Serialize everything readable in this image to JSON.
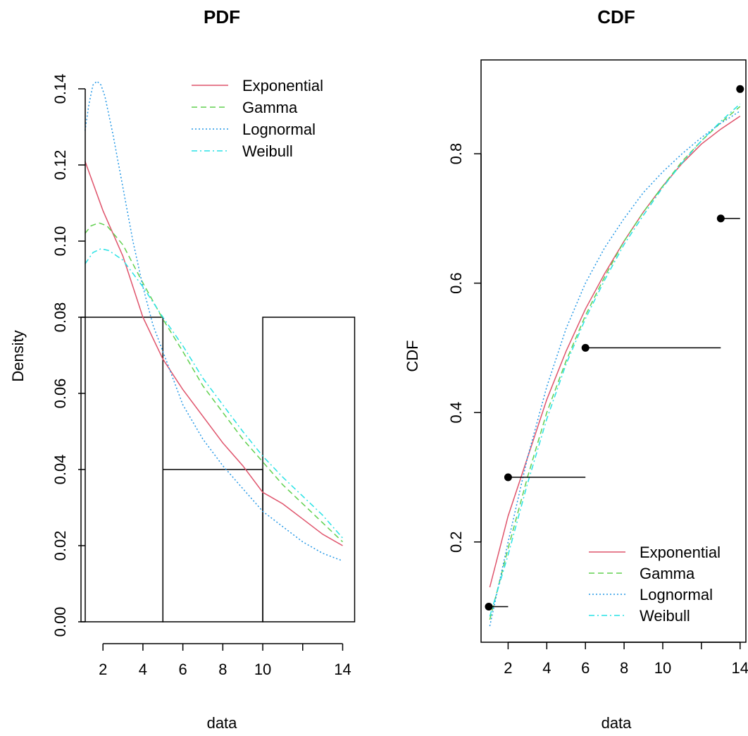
{
  "chart_data": [
    {
      "type": "line",
      "title": "PDF",
      "xlabel": "data",
      "ylabel": "Density",
      "xlim": [
        0.9,
        14.3
      ],
      "ylim": [
        0,
        0.14
      ],
      "x_ticks": [
        2,
        4,
        6,
        8,
        10,
        12,
        14
      ],
      "x_tick_labels": [
        "2",
        "4",
        "6",
        "8",
        "10",
        "",
        "14"
      ],
      "y_ticks": [
        0,
        0.02,
        0.04,
        0.06,
        0.08,
        0.1,
        0.12,
        0.14
      ],
      "y_tick_labels": [
        "0.00",
        "0.02",
        "0.04",
        "0.06",
        "0.08",
        "0.10",
        "0.12",
        "0.14"
      ],
      "legend_position": "top-right",
      "histogram": [
        {
          "x0": 0.9,
          "x1": 5,
          "density": 0.08
        },
        {
          "x0": 5,
          "x1": 10,
          "density": 0.04
        },
        {
          "x0": 10,
          "x1": 14.6,
          "density": 0.08
        }
      ],
      "series": [
        {
          "name": "Exponential",
          "color": "#DF536B",
          "dash": "solid",
          "x": [
            1.1,
            2,
            3,
            4,
            5,
            6,
            7,
            8,
            9,
            10,
            11,
            12,
            13,
            14
          ],
          "y": [
            0.121,
            0.108,
            0.096,
            0.08,
            0.069,
            0.061,
            0.054,
            0.047,
            0.041,
            0.034,
            0.031,
            0.027,
            0.023,
            0.02
          ]
        },
        {
          "name": "Gamma",
          "color": "#61D04F",
          "dash": "dashed",
          "x": [
            1.1,
            1.4,
            1.8,
            2.2,
            3,
            4,
            5,
            6,
            7,
            8,
            9,
            10,
            11,
            12,
            13,
            14
          ],
          "y": [
            0.102,
            0.104,
            0.1048,
            0.104,
            0.099,
            0.089,
            0.0795,
            0.071,
            0.062,
            0.055,
            0.048,
            0.042,
            0.036,
            0.031,
            0.026,
            0.021
          ]
        },
        {
          "name": "Lognormal",
          "color": "#2297E6",
          "dash": "dotted",
          "x": [
            1.1,
            1.3,
            1.5,
            1.7,
            1.9,
            2.1,
            2.5,
            3,
            3.5,
            4,
            4.5,
            5,
            6,
            7,
            8,
            9,
            10,
            11,
            12,
            13,
            14
          ],
          "y": [
            0.129,
            0.136,
            0.141,
            0.142,
            0.141,
            0.138,
            0.128,
            0.114,
            0.1,
            0.088,
            0.078,
            0.071,
            0.057,
            0.048,
            0.041,
            0.035,
            0.029,
            0.025,
            0.021,
            0.018,
            0.016
          ]
        },
        {
          "name": "Weibull",
          "color": "#28E2E5",
          "dash": "dashdot",
          "x": [
            1.1,
            1.5,
            1.9,
            2.3,
            3,
            4,
            5,
            6,
            7,
            8,
            9,
            10,
            11,
            12,
            13,
            14
          ],
          "y": [
            0.094,
            0.097,
            0.098,
            0.0975,
            0.095,
            0.088,
            0.08,
            0.0725,
            0.064,
            0.057,
            0.05,
            0.0435,
            0.038,
            0.033,
            0.028,
            0.022
          ]
        }
      ]
    },
    {
      "type": "line",
      "title": "CDF",
      "xlabel": "data",
      "ylabel": "CDF",
      "xlim": [
        0.6,
        14.3
      ],
      "ylim": [
        0.045,
        0.945
      ],
      "x_ticks": [
        2,
        4,
        6,
        8,
        10,
        12,
        14
      ],
      "x_tick_labels": [
        "2",
        "4",
        "6",
        "8",
        "10",
        "",
        "14"
      ],
      "y_ticks": [
        0.2,
        0.4,
        0.6,
        0.8
      ],
      "y_tick_labels": [
        "0.2",
        "0.4",
        "0.6",
        "0.8"
      ],
      "legend_position": "bottom-right",
      "ecdf": [
        {
          "x": 1,
          "x_end": 2,
          "y": 0.1
        },
        {
          "x": 2,
          "x_end": 6,
          "y": 0.3
        },
        {
          "x": 6,
          "x_end": 13,
          "y": 0.5
        },
        {
          "x": 13,
          "x_end": 14,
          "y": 0.7
        },
        {
          "x": 14,
          "x_end": 14,
          "y": 0.9
        }
      ],
      "series": [
        {
          "name": "Exponential",
          "color": "#DF536B",
          "dash": "solid",
          "x": [
            1.05,
            2,
            3,
            4,
            5,
            6,
            7,
            8,
            9,
            10,
            11,
            12,
            13,
            14
          ],
          "y": [
            0.13,
            0.24,
            0.33,
            0.42,
            0.495,
            0.56,
            0.615,
            0.665,
            0.71,
            0.75,
            0.785,
            0.815,
            0.838,
            0.858
          ]
        },
        {
          "name": "Gamma",
          "color": "#61D04F",
          "dash": "dashed",
          "x": [
            1.05,
            2,
            3,
            4,
            5,
            6,
            7,
            8,
            9,
            10,
            11,
            12,
            13,
            14
          ],
          "y": [
            0.08,
            0.19,
            0.3,
            0.4,
            0.48,
            0.55,
            0.61,
            0.665,
            0.71,
            0.75,
            0.788,
            0.82,
            0.848,
            0.873
          ]
        },
        {
          "name": "Lognormal",
          "color": "#2297E6",
          "dash": "dotted",
          "x": [
            1.05,
            2,
            3,
            4,
            5,
            6,
            7,
            8,
            9,
            10,
            11,
            12,
            13,
            14
          ],
          "y": [
            0.07,
            0.2,
            0.33,
            0.44,
            0.53,
            0.6,
            0.655,
            0.7,
            0.74,
            0.772,
            0.8,
            0.825,
            0.847,
            0.866
          ]
        },
        {
          "name": "Weibull",
          "color": "#28E2E5",
          "dash": "dashdot",
          "x": [
            1.05,
            2,
            3,
            4,
            5,
            6,
            7,
            8,
            9,
            10,
            11,
            12,
            13,
            14
          ],
          "y": [
            0.085,
            0.18,
            0.29,
            0.39,
            0.475,
            0.545,
            0.605,
            0.66,
            0.705,
            0.748,
            0.786,
            0.82,
            0.85,
            0.877
          ]
        }
      ]
    }
  ]
}
